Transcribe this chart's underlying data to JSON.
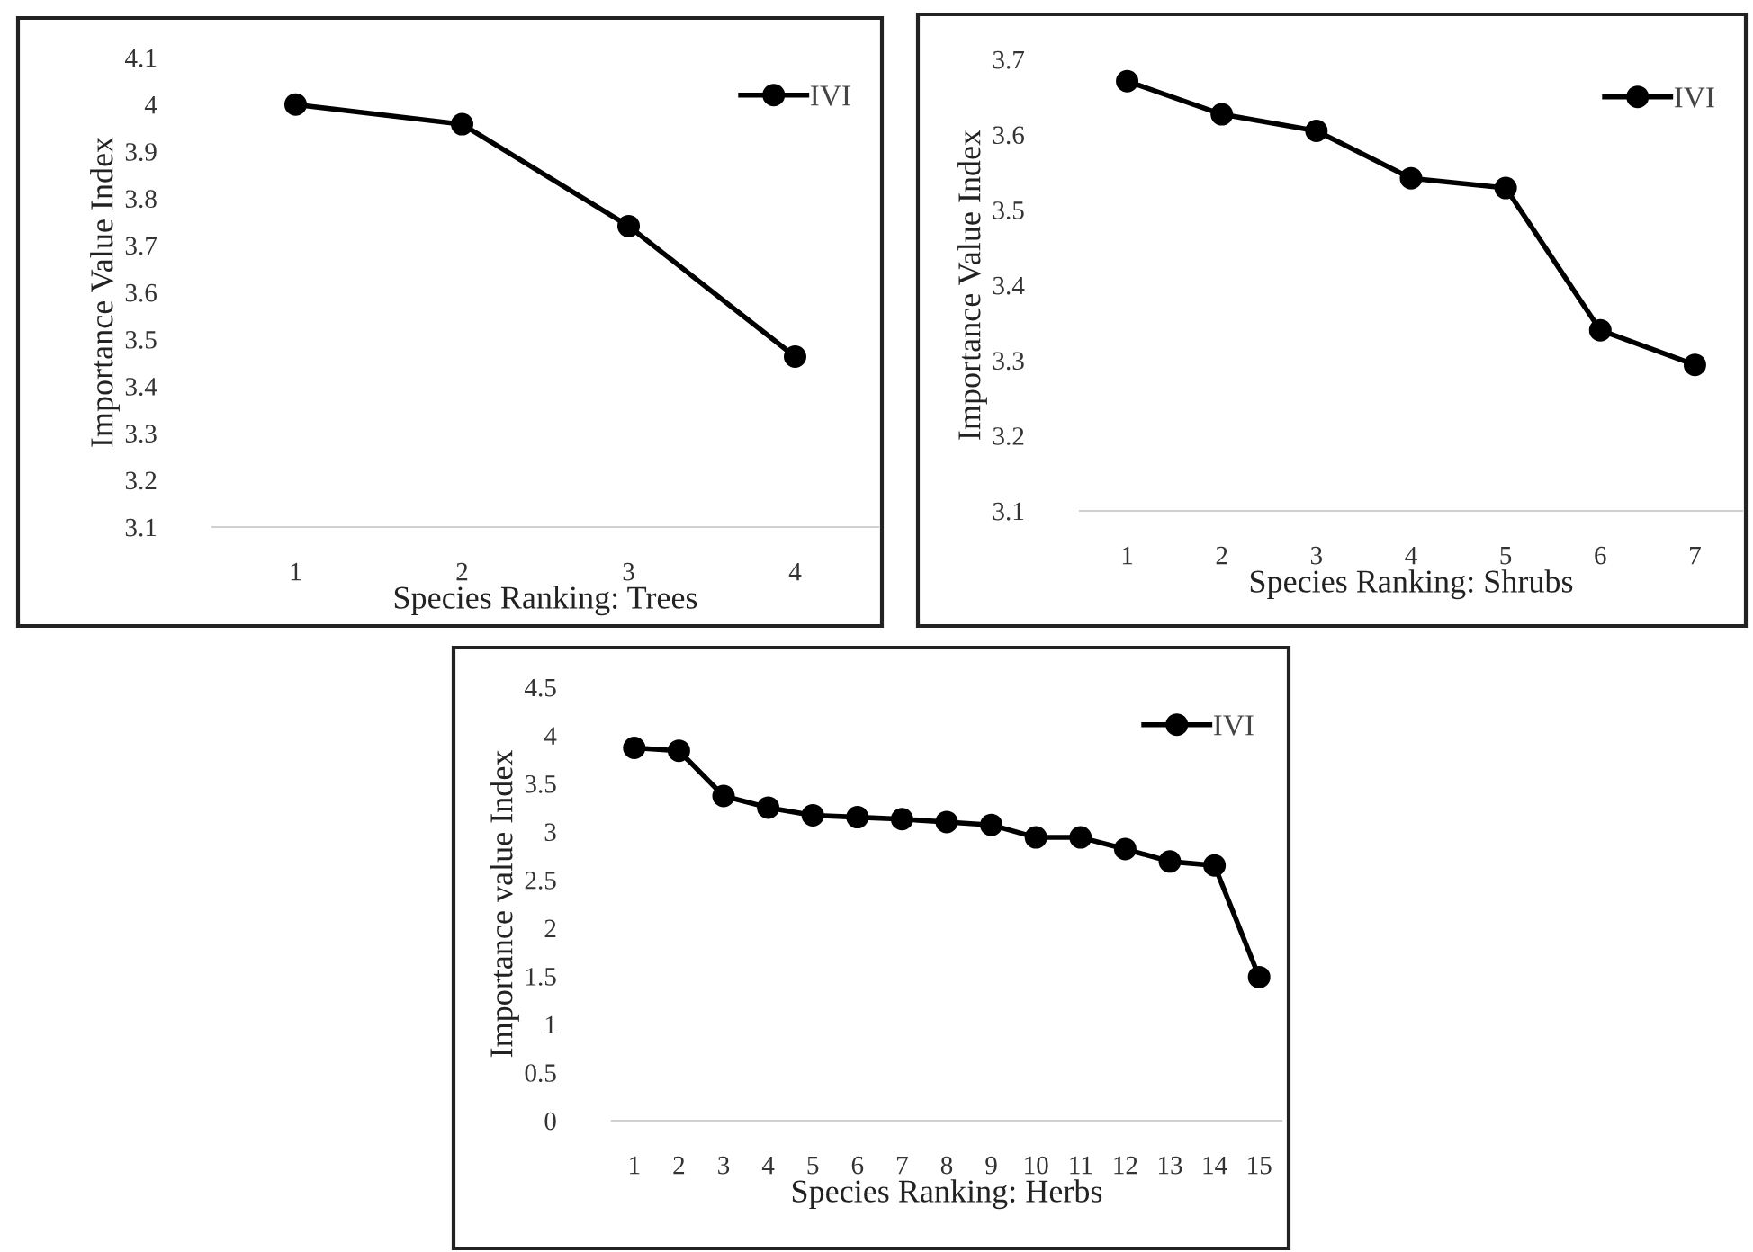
{
  "chart_data": [
    {
      "type": "line",
      "categories": [
        "1",
        "2",
        "3",
        "4"
      ],
      "xlabel": "Species Ranking: Trees",
      "ylabel": "Importance Value Index",
      "ylim": [
        3.1,
        4.1
      ],
      "yticks": [
        3.1,
        3.2,
        3.3,
        3.4,
        3.5,
        3.6,
        3.7,
        3.8,
        3.9,
        4,
        4.1
      ],
      "marker": "circle",
      "legend": "top right",
      "series": [
        {
          "name": "IVI",
          "color": "#000000",
          "values": [
            4.0,
            3.958,
            3.741,
            3.463
          ]
        }
      ]
    },
    {
      "type": "line",
      "categories": [
        "1",
        "2",
        "3",
        "4",
        "5",
        "6",
        "7"
      ],
      "xlabel": "Species Ranking: Shrubs",
      "ylabel": "Importance Value Index",
      "ylim": [
        3.1,
        3.7
      ],
      "yticks": [
        3.1,
        3.2,
        3.3,
        3.4,
        3.5,
        3.6,
        3.7
      ],
      "marker": "circle",
      "legend": "top right",
      "series": [
        {
          "name": "IVI",
          "color": "#000000",
          "values": [
            3.671,
            3.627,
            3.605,
            3.542,
            3.529,
            3.34,
            3.294
          ]
        }
      ]
    },
    {
      "type": "line",
      "categories": [
        "1",
        "2",
        "3",
        "4",
        "5",
        "6",
        "7",
        "8",
        "9",
        "10",
        "11",
        "12",
        "13",
        "14",
        "15"
      ],
      "xlabel": "Species Ranking: Herbs",
      "ylabel": "Importance value Index",
      "ylim": [
        0,
        4.5
      ],
      "yticks": [
        0,
        0.5,
        1,
        1.5,
        2,
        2.5,
        3,
        3.5,
        4,
        4.5
      ],
      "marker": "circle",
      "legend": "top right",
      "series": [
        {
          "name": "IVI",
          "color": "#000000",
          "values": [
            3.87,
            3.84,
            3.37,
            3.25,
            3.17,
            3.15,
            3.13,
            3.1,
            3.07,
            2.94,
            2.94,
            2.82,
            2.69,
            2.65,
            1.49
          ]
        }
      ]
    }
  ]
}
